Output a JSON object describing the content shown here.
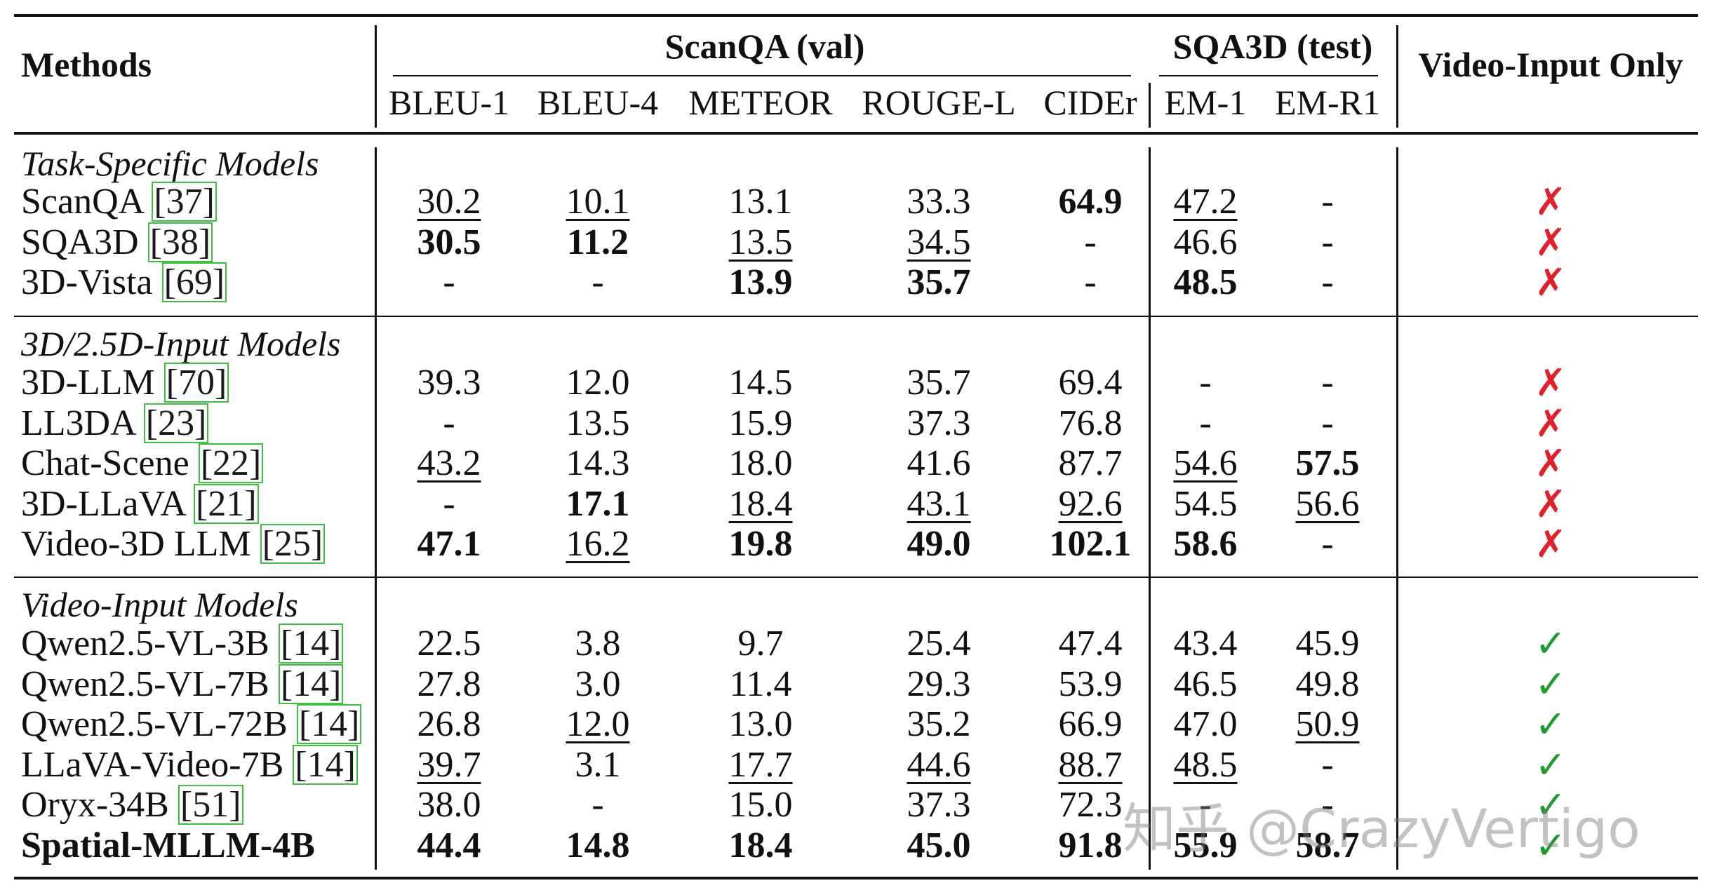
{
  "header": {
    "methods": "Methods",
    "scanqa_group": "ScanQA (val)",
    "sqa3d_group": "SQA3D (test)",
    "video_only": "Video-Input Only",
    "metrics": [
      "BLEU-1",
      "BLEU-4",
      "METEOR",
      "ROUGE-L",
      "CIDEr",
      "EM-1",
      "EM-R1"
    ]
  },
  "groups": [
    {
      "title": "Task-Specific Models",
      "rows": [
        {
          "name": "ScanQA",
          "ref": "[37]",
          "cells": [
            {
              "v": "30.2",
              "u": true
            },
            {
              "v": "10.1",
              "u": true
            },
            {
              "v": "13.1"
            },
            {
              "v": "33.3"
            },
            {
              "v": "64.9",
              "b": true
            },
            {
              "v": "47.2",
              "u": true
            },
            {
              "v": "-"
            }
          ],
          "video_only": "✗",
          "vo": false
        },
        {
          "name": "SQA3D",
          "ref": "[38]",
          "cells": [
            {
              "v": "30.5",
              "b": true
            },
            {
              "v": "11.2",
              "b": true
            },
            {
              "v": "13.5",
              "u": true
            },
            {
              "v": "34.5",
              "u": true
            },
            {
              "v": "-"
            },
            {
              "v": "46.6"
            },
            {
              "v": "-"
            }
          ],
          "video_only": "✗",
          "vo": false
        },
        {
          "name": "3D-Vista",
          "ref": "[69]",
          "cells": [
            {
              "v": "-"
            },
            {
              "v": "-"
            },
            {
              "v": "13.9",
              "b": true
            },
            {
              "v": "35.7",
              "b": true
            },
            {
              "v": "-"
            },
            {
              "v": "48.5",
              "b": true
            },
            {
              "v": "-"
            }
          ],
          "video_only": "✗",
          "vo": false
        }
      ]
    },
    {
      "title": "3D/2.5D-Input Models",
      "rows": [
        {
          "name": "3D-LLM",
          "ref": "[70]",
          "cells": [
            {
              "v": "39.3"
            },
            {
              "v": "12.0"
            },
            {
              "v": "14.5"
            },
            {
              "v": "35.7"
            },
            {
              "v": "69.4"
            },
            {
              "v": "-"
            },
            {
              "v": "-"
            }
          ],
          "video_only": "✗",
          "vo": false
        },
        {
          "name": "LL3DA",
          "ref": "[23]",
          "cells": [
            {
              "v": "-"
            },
            {
              "v": "13.5"
            },
            {
              "v": "15.9"
            },
            {
              "v": "37.3"
            },
            {
              "v": "76.8"
            },
            {
              "v": "-"
            },
            {
              "v": "-"
            }
          ],
          "video_only": "✗",
          "vo": false
        },
        {
          "name": "Chat-Scene",
          "ref": "[22]",
          "cells": [
            {
              "v": "43.2",
              "u": true
            },
            {
              "v": "14.3"
            },
            {
              "v": "18.0"
            },
            {
              "v": "41.6"
            },
            {
              "v": "87.7"
            },
            {
              "v": "54.6",
              "u": true
            },
            {
              "v": "57.5",
              "b": true
            }
          ],
          "video_only": "✗",
          "vo": false
        },
        {
          "name": "3D-LLaVA",
          "ref": "[21]",
          "cells": [
            {
              "v": "-"
            },
            {
              "v": "17.1",
              "b": true
            },
            {
              "v": "18.4",
              "u": true
            },
            {
              "v": "43.1",
              "u": true
            },
            {
              "v": "92.6",
              "u": true
            },
            {
              "v": "54.5"
            },
            {
              "v": "56.6",
              "u": true
            }
          ],
          "video_only": "✗",
          "vo": false
        },
        {
          "name": "Video-3D LLM",
          "ref": "[25]",
          "cells": [
            {
              "v": "47.1",
              "b": true
            },
            {
              "v": "16.2",
              "u": true
            },
            {
              "v": "19.8",
              "b": true
            },
            {
              "v": "49.0",
              "b": true
            },
            {
              "v": "102.1",
              "b": true
            },
            {
              "v": "58.6",
              "b": true
            },
            {
              "v": "-"
            }
          ],
          "video_only": "✗",
          "vo": false
        }
      ]
    },
    {
      "title": "Video-Input Models",
      "rows": [
        {
          "name": "Qwen2.5-VL-3B",
          "ref": "[14]",
          "cells": [
            {
              "v": "22.5"
            },
            {
              "v": "3.8"
            },
            {
              "v": "9.7"
            },
            {
              "v": "25.4"
            },
            {
              "v": "47.4"
            },
            {
              "v": "43.4"
            },
            {
              "v": "45.9"
            }
          ],
          "video_only": "✓",
          "vo": true
        },
        {
          "name": "Qwen2.5-VL-7B",
          "ref": "[14]",
          "cells": [
            {
              "v": "27.8"
            },
            {
              "v": "3.0"
            },
            {
              "v": "11.4"
            },
            {
              "v": "29.3"
            },
            {
              "v": "53.9"
            },
            {
              "v": "46.5"
            },
            {
              "v": "49.8"
            }
          ],
          "video_only": "✓",
          "vo": true
        },
        {
          "name": "Qwen2.5-VL-72B",
          "ref": "[14]",
          "cells": [
            {
              "v": "26.8"
            },
            {
              "v": "12.0",
              "u": true
            },
            {
              "v": "13.0"
            },
            {
              "v": "35.2"
            },
            {
              "v": "66.9"
            },
            {
              "v": "47.0"
            },
            {
              "v": "50.9",
              "u": true
            }
          ],
          "video_only": "✓",
          "vo": true
        },
        {
          "name": "LLaVA-Video-7B",
          "ref": "[14]",
          "cells": [
            {
              "v": "39.7",
              "u": true
            },
            {
              "v": "3.1"
            },
            {
              "v": "17.7",
              "u": true
            },
            {
              "v": "44.6",
              "u": true
            },
            {
              "v": "88.7",
              "u": true
            },
            {
              "v": "48.5",
              "u": true
            },
            {
              "v": "-"
            }
          ],
          "video_only": "✓",
          "vo": true
        },
        {
          "name": "Oryx-34B",
          "ref": "[51]",
          "cells": [
            {
              "v": "38.0"
            },
            {
              "v": "-"
            },
            {
              "v": "15.0"
            },
            {
              "v": "37.3"
            },
            {
              "v": "72.3"
            },
            {
              "v": "-"
            },
            {
              "v": "-"
            }
          ],
          "video_only": "✓",
          "vo": true
        },
        {
          "name": "Spatial-MLLM-4B",
          "ref": "",
          "bold": true,
          "cells": [
            {
              "v": "44.4",
              "b": true
            },
            {
              "v": "14.8",
              "b": true
            },
            {
              "v": "18.4",
              "b": true
            },
            {
              "v": "45.0",
              "b": true
            },
            {
              "v": "91.8",
              "b": true
            },
            {
              "v": "55.9",
              "b": true
            },
            {
              "v": "58.7",
              "b": true
            }
          ],
          "video_only": "✓",
          "vo": true
        }
      ]
    }
  ],
  "watermark": "知乎 @CrazyVertigo",
  "colors": {
    "cross": "#e0202a",
    "check": "#1f9a2e",
    "ref_box": "#3fbf3f"
  }
}
